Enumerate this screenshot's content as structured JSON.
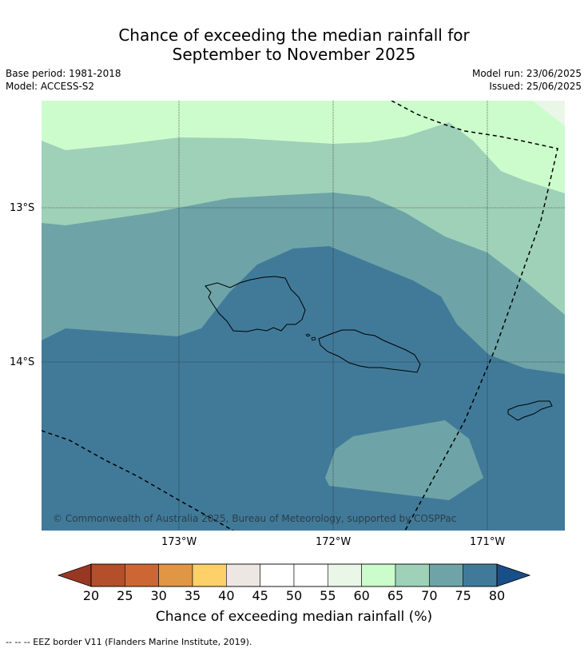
{
  "header": {
    "title_line1": "Chance of exceeding the median rainfall for",
    "title_line2": "September to November 2025",
    "base_period": "Base period: 1981-2018",
    "model": "Model: ACCESS-S2",
    "model_run": "Model run: 23/06/2025",
    "issued": "Issued: 25/06/2025"
  },
  "map": {
    "lat_ticks": [
      "13°S",
      "14°S"
    ],
    "lon_ticks": [
      "173°W",
      "172°W",
      "171°W"
    ],
    "copyright": "© Commonwealth of Australia 2025, Bureau of Meteorology, supported by COSPPac"
  },
  "colorbar": {
    "labels": [
      "20",
      "25",
      "30",
      "35",
      "40",
      "45",
      "50",
      "55",
      "60",
      "65",
      "70",
      "75",
      "80"
    ],
    "colors": [
      "#993822",
      "#b34f2a",
      "#cc6733",
      "#e09644",
      "#fdd069",
      "#ece7e2",
      "#ffffff",
      "#ffffff",
      "#eaf6e8",
      "#ccfccc",
      "#9ed1b8",
      "#6ea4a7",
      "#417a99"
    ],
    "under_color": "#993822",
    "over_color": "#194f89",
    "title": "Chance of exceeding median rainfall (%)"
  },
  "footnote": "--  --  -- EEZ border V11 (Flanders Marine Institute, 2019)."
}
